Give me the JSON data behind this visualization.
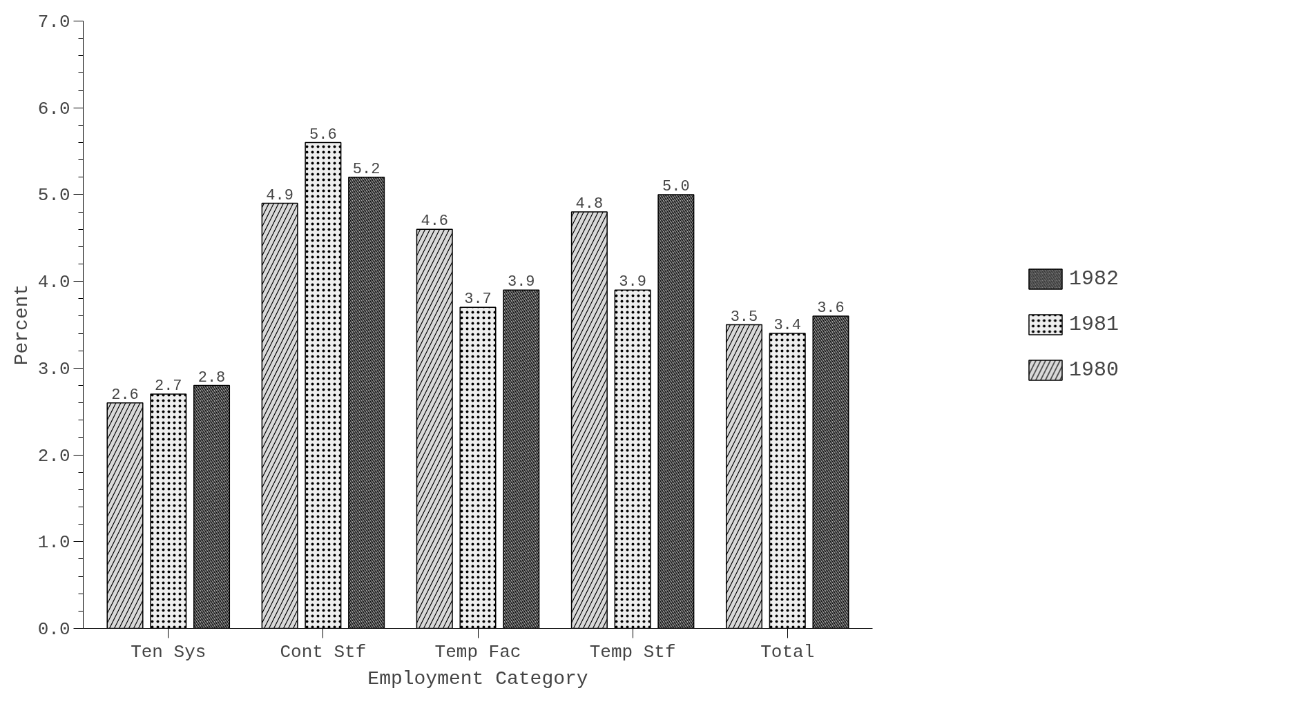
{
  "chart_data": {
    "type": "bar",
    "xlabel": "Employment Category",
    "ylabel": "Percent",
    "categories": [
      "Ten Sys",
      "Cont Stf",
      "Temp Fac",
      "Temp Stf",
      "Total"
    ],
    "series": [
      {
        "name": "1980",
        "color": "#d9d9d9",
        "values": [
          2.6,
          4.9,
          4.6,
          4.8,
          3.5
        ]
      },
      {
        "name": "1981",
        "color": "#eeeeee",
        "values": [
          2.7,
          5.6,
          3.7,
          3.9,
          3.4
        ]
      },
      {
        "name": "1982",
        "color": "#a6a6a6",
        "values": [
          2.8,
          5.2,
          3.9,
          5.0,
          3.6
        ],
        "value_labels": [
          "2.8",
          "5.2",
          "3.9",
          "5.0",
          "3.6"
        ]
      }
    ],
    "ylim": [
      0,
      7
    ],
    "yticks": [
      {
        "value": 0,
        "label": "0.0"
      },
      {
        "value": 1,
        "label": "1.0"
      },
      {
        "value": 2,
        "label": "2.0"
      },
      {
        "value": 3,
        "label": "3.0"
      },
      {
        "value": 4,
        "label": "4.0"
      },
      {
        "value": 5,
        "label": "5.0"
      },
      {
        "value": 6,
        "label": "6.0"
      },
      {
        "value": 7,
        "label": "7.0"
      }
    ],
    "data_labels": true,
    "legend": "right",
    "grid": false
  }
}
